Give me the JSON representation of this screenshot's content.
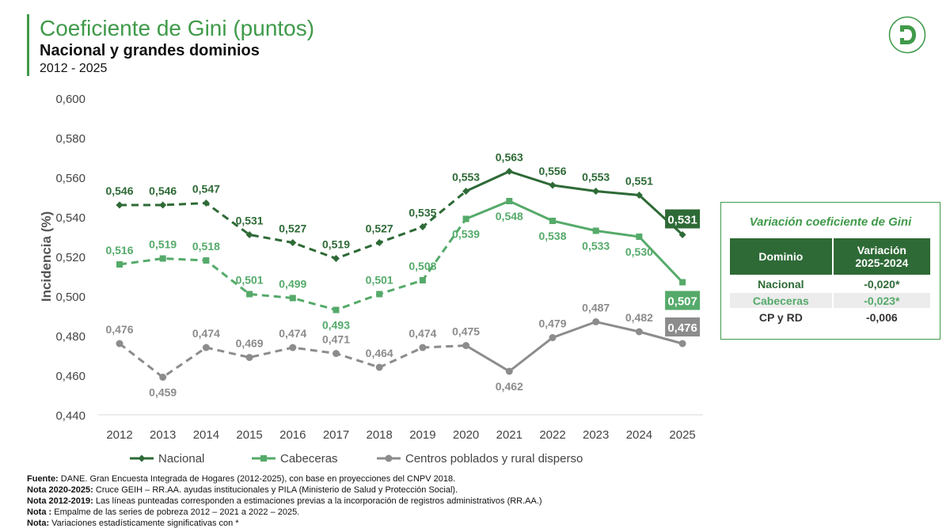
{
  "header": {
    "title": "Coeficiente de Gini (puntos)",
    "subtitle": "Nacional y grandes dominios",
    "period": "2012 - 2025"
  },
  "colors": {
    "nacional": "#2e6a36",
    "cabeceras": "#55aa6a",
    "cpyrd": "#8c8c8c",
    "accent": "#3f9a4a"
  },
  "chart_data": {
    "type": "line",
    "ylabel": "Incidencia (%)",
    "ylim": [
      0.44,
      0.6
    ],
    "yticks": [
      "0,600",
      "0,580",
      "0,560",
      "0,540",
      "0,520",
      "0,500",
      "0,480",
      "0,460",
      "0,440"
    ],
    "categories": [
      "2012",
      "2013",
      "2014",
      "2015",
      "2016",
      "2017",
      "2018",
      "2019",
      "2020",
      "2021",
      "2022",
      "2023",
      "2024",
      "2025"
    ],
    "dashed_through": "2020",
    "legend_position": "bottom",
    "series": [
      {
        "name": "Nacional",
        "color": "#2e6a36",
        "marker": "diamond",
        "values": [
          0.546,
          0.546,
          0.547,
          0.531,
          0.527,
          0.519,
          0.527,
          0.535,
          0.553,
          0.563,
          0.556,
          0.553,
          0.551,
          0.531
        ],
        "labels": [
          "0,546",
          "0,546",
          "0,547",
          "0,531",
          "0,527",
          "0,519",
          "0,527",
          "0,535",
          "0,553",
          "0,563",
          "0,556",
          "0,553",
          "0,551",
          "0,531"
        ]
      },
      {
        "name": "Cabeceras",
        "color": "#55aa6a",
        "marker": "square",
        "values": [
          0.516,
          0.519,
          0.518,
          0.501,
          0.499,
          0.493,
          0.501,
          0.508,
          0.539,
          0.548,
          0.538,
          0.533,
          0.53,
          0.507
        ],
        "labels": [
          "0,516",
          "0,519",
          "0,518",
          "0,501",
          "0,499",
          "0,493",
          "0,501",
          "0,508",
          "0,539",
          "0,548",
          "0,538",
          "0,533",
          "0,530",
          "0,507"
        ]
      },
      {
        "name": "Centros poblados y rural disperso",
        "color": "#8c8c8c",
        "marker": "circle",
        "values": [
          0.476,
          0.459,
          0.474,
          0.469,
          0.474,
          0.471,
          0.464,
          0.474,
          0.475,
          0.462,
          0.479,
          0.487,
          0.482,
          0.476
        ],
        "labels": [
          "0,476",
          "0,459",
          "0,474",
          "0,469",
          "0,474",
          "0,471",
          "0,464",
          "0,474",
          "0,475",
          "0,462",
          "0,479",
          "0,487",
          "0,482",
          "0,476"
        ]
      }
    ]
  },
  "variation_table": {
    "title": "Variación coeficiente de Gini",
    "col_domain": "Dominio",
    "col_variation_line1": "Variación",
    "col_variation_line2": "2025-2024",
    "rows": [
      {
        "domain": "Nacional",
        "value": "-0,020*"
      },
      {
        "domain": "Cabeceras",
        "value": "-0,023*"
      },
      {
        "domain": "CP y RD",
        "value": "-0,006"
      }
    ]
  },
  "footnotes": [
    {
      "label": "Fuente:",
      "text": " DANE. Gran Encuesta Integrada de Hogares (2012-2025), con base en proyecciones del CNPV 2018."
    },
    {
      "label": "Nota 2020-2025:",
      "text": " Cruce GEIH – RR.AA. ayudas institucionales y PILA (Ministerio de Salud y Protección Social)."
    },
    {
      "label": "Nota 2012-2019:",
      "text": " Las líneas punteadas corresponden a estimaciones previas a la incorporación de registros administrativos (RR.AA.)"
    },
    {
      "label": "Nota :",
      "text": " Empalme  de las series de pobreza 2012 – 2021 a 2022 – 2025."
    },
    {
      "label": "Nota:",
      "text": " Variaciones estadísticamente significativas con *"
    }
  ]
}
